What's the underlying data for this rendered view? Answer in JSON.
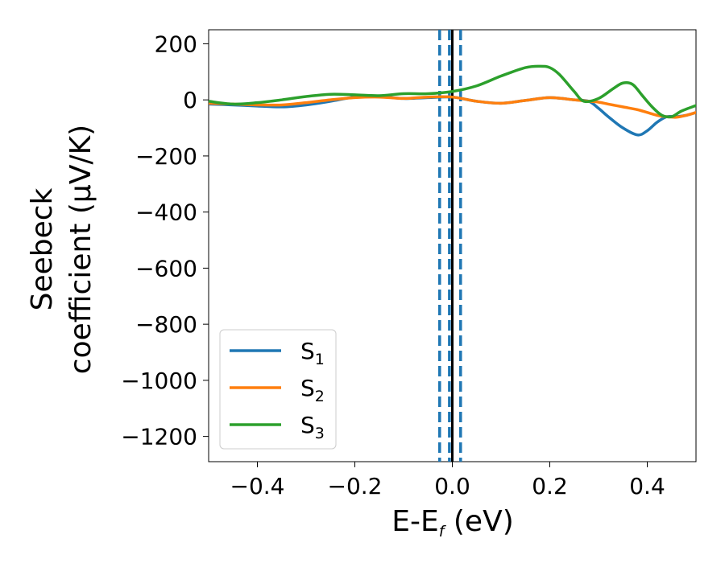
{
  "chart_data": {
    "type": "line",
    "xlabel": {
      "base": "E-E",
      "sub": "f",
      "unit": " (eV)"
    },
    "ylabel": {
      "line1": "Seebeck",
      "line2": "coefficient  (μV/K)"
    },
    "xlim": [
      -0.5,
      0.5
    ],
    "ylim": [
      -1290,
      250
    ],
    "xticks": [
      -0.4,
      -0.2,
      0.0,
      0.2,
      0.4
    ],
    "xtick_labels": [
      "−0.4",
      "−0.2",
      "0.0",
      "0.2",
      "0.4"
    ],
    "yticks": [
      200,
      0,
      -200,
      -400,
      -600,
      -800,
      -1000,
      -1200
    ],
    "ytick_labels": [
      "200",
      "0",
      "−200",
      "−400",
      "−600",
      "−800",
      "−1000",
      "−1200"
    ],
    "grid": false,
    "legend_position": "bottom-left",
    "vlines": [
      {
        "x": 0.0,
        "style": "solid",
        "color": "#000000"
      },
      {
        "x": -0.026,
        "style": "dashed",
        "color": "#1f77b4"
      },
      {
        "x": -0.006,
        "style": "dashed",
        "color": "#1f77b4"
      },
      {
        "x": 0.017,
        "style": "dashed",
        "color": "#1f77b4"
      }
    ],
    "series": [
      {
        "name": "S",
        "sub": "1",
        "color": "#1f77b4",
        "x": [
          -0.5,
          -0.45,
          -0.4,
          -0.35,
          -0.3,
          -0.25,
          -0.2,
          -0.15,
          -0.1,
          -0.05,
          0.0,
          0.05,
          0.1,
          0.15,
          0.2,
          0.25,
          0.28,
          0.3,
          0.32,
          0.35,
          0.38,
          0.4,
          0.42,
          0.44,
          0.46,
          0.48,
          0.5
        ],
        "y": [
          -15,
          -18,
          -22,
          -25,
          -18,
          -5,
          10,
          12,
          5,
          8,
          10,
          -5,
          -12,
          -2,
          8,
          0,
          -5,
          -30,
          -60,
          -100,
          -125,
          -110,
          -80,
          -60,
          -60,
          -55,
          -45
        ]
      },
      {
        "name": "S",
        "sub": "2",
        "color": "#ff7f0e",
        "x": [
          -0.5,
          -0.45,
          -0.4,
          -0.35,
          -0.3,
          -0.25,
          -0.2,
          -0.15,
          -0.1,
          -0.05,
          0.0,
          0.05,
          0.1,
          0.15,
          0.2,
          0.25,
          0.28,
          0.3,
          0.32,
          0.35,
          0.38,
          0.4,
          0.42,
          0.44,
          0.46,
          0.48,
          0.5
        ],
        "y": [
          -12,
          -15,
          -18,
          -18,
          -10,
          0,
          8,
          10,
          5,
          10,
          10,
          -5,
          -12,
          -2,
          8,
          0,
          -5,
          -8,
          -15,
          -25,
          -35,
          -45,
          -55,
          -60,
          -62,
          -55,
          -45
        ]
      },
      {
        "name": "S",
        "sub": "3",
        "color": "#2ca02c",
        "x": [
          -0.5,
          -0.45,
          -0.4,
          -0.35,
          -0.3,
          -0.25,
          -0.2,
          -0.15,
          -0.1,
          -0.05,
          0.0,
          0.05,
          0.1,
          0.15,
          0.18,
          0.2,
          0.22,
          0.25,
          0.27,
          0.3,
          0.33,
          0.35,
          0.37,
          0.39,
          0.41,
          0.43,
          0.45,
          0.47,
          0.5
        ],
        "y": [
          -5,
          -15,
          -10,
          0,
          12,
          20,
          18,
          15,
          22,
          22,
          30,
          50,
          85,
          115,
          120,
          115,
          90,
          30,
          -5,
          5,
          40,
          60,
          55,
          15,
          -25,
          -55,
          -60,
          -40,
          -20
        ]
      }
    ]
  }
}
